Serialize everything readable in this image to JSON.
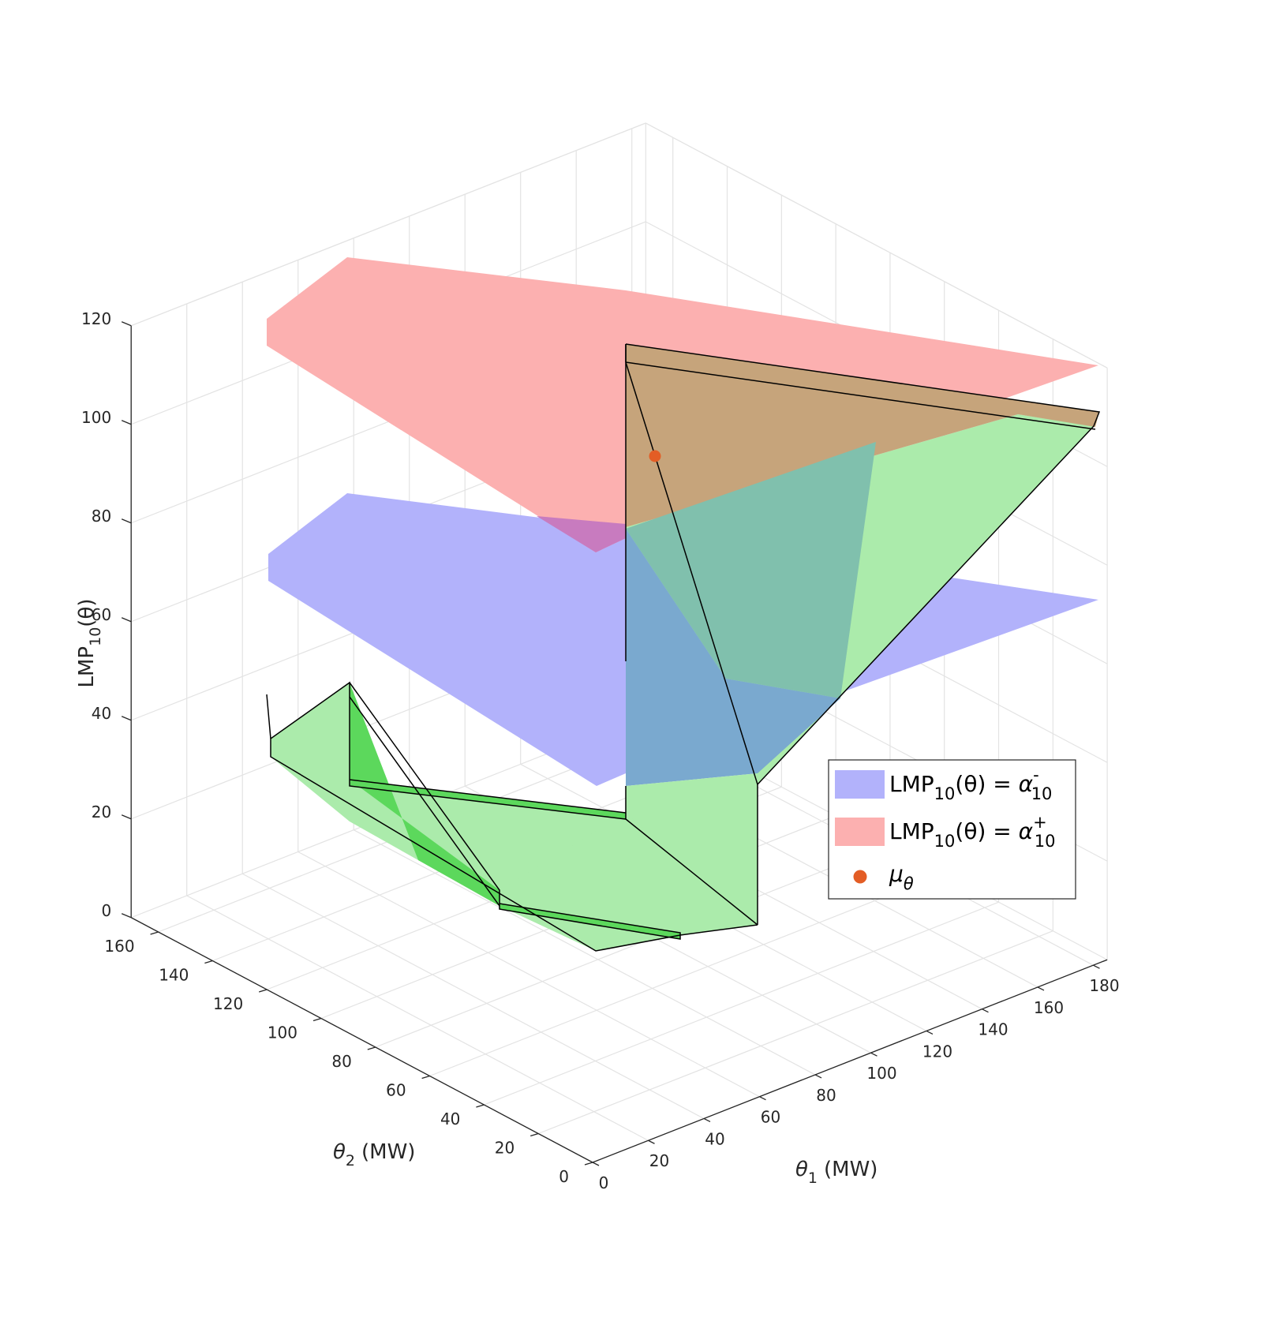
{
  "chart_data": {
    "type": "surface3d",
    "title": "",
    "axes": {
      "x": {
        "label_sym": "θ",
        "label_sub": "1",
        "label_unit": "(MW)",
        "range": [
          0,
          180
        ],
        "ticks": [
          "0",
          "20",
          "40",
          "60",
          "80",
          "100",
          "120",
          "140",
          "160",
          "180"
        ]
      },
      "y": {
        "label_sym": "θ",
        "label_sub": "2",
        "label_unit": "(MW)",
        "range": [
          0,
          160
        ],
        "ticks": [
          "0",
          "20",
          "40",
          "60",
          "80",
          "100",
          "120",
          "140",
          "160"
        ]
      },
      "z": {
        "label_pre": "LMP",
        "label_sub": "10",
        "label_post": "(θ)",
        "range": [
          0,
          120
        ],
        "ticks": [
          "0",
          "20",
          "40",
          "60",
          "80",
          "100",
          "120"
        ]
      }
    },
    "grid": true,
    "legend_position": "lower-right",
    "legend": [
      {
        "key": "alpha_minus",
        "lhs_pre": "LMP",
        "lhs_sub": "10",
        "lhs_post": "(θ) = ",
        "rhs_sym": "α",
        "rhs_sup": "-",
        "rhs_sub": "10",
        "color": "#b2b2fb"
      },
      {
        "key": "alpha_plus",
        "lhs_pre": "LMP",
        "lhs_sub": "10",
        "lhs_post": "(θ) = ",
        "rhs_sym": "α",
        "rhs_sup": "+",
        "rhs_sub": "10",
        "color": "#fcb0b0"
      },
      {
        "key": "mu_theta",
        "sym": "μ",
        "sub": "θ",
        "color": "#e35d25"
      }
    ],
    "colors": {
      "blue_plane": "#b2b2fb",
      "red_plane": "#fcb0b0",
      "green_region": "#abebab",
      "green_dark": "#5cd85c",
      "brown_overlap": "#c6a47b",
      "teal_overlap": "#80c0ad",
      "steel_overlap": "#7aa9cf",
      "purple_overlap": "#c87bbf",
      "mu_point": "#e35d25"
    },
    "point": {
      "name": "μ_θ",
      "x": 165,
      "y": 95,
      "z": 88
    },
    "planes": [
      {
        "name": "α-",
        "z_range": [
          8,
          80
        ]
      },
      {
        "name": "α+",
        "z_range": [
          64,
          130
        ]
      }
    ]
  }
}
